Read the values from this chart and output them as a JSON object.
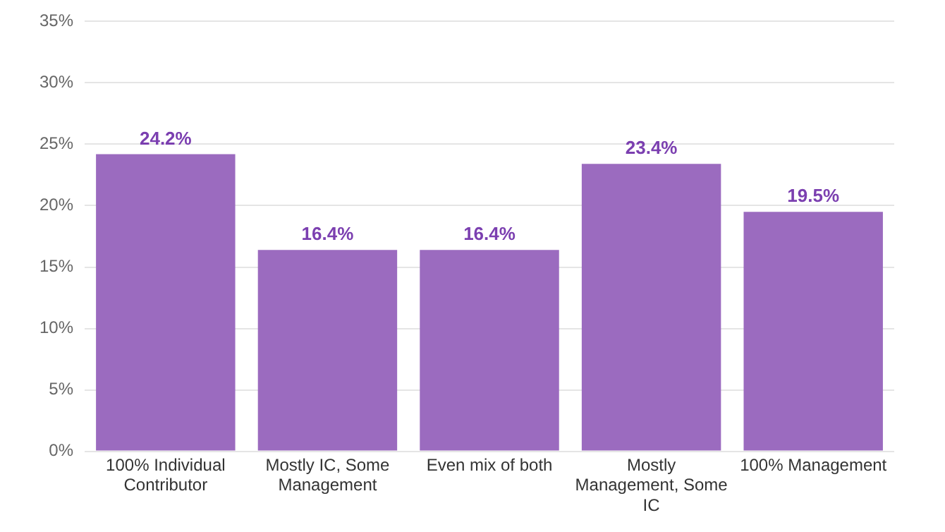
{
  "chart_data": {
    "type": "bar",
    "categories": [
      "100% Individual Contributor",
      "Mostly IC, Some Management",
      "Even mix of both",
      "Mostly Management, Some IC",
      "100% Management"
    ],
    "values": [
      24.2,
      16.4,
      16.4,
      23.4,
      19.5
    ],
    "value_labels": [
      "24.2%",
      "16.4%",
      "16.4%",
      "23.4%",
      "19.5%"
    ],
    "color": "#9b6bbf",
    "ylim": [
      0,
      35
    ],
    "yticks": [
      {
        "value": 0,
        "label": "0%"
      },
      {
        "value": 5,
        "label": "5%"
      },
      {
        "value": 10,
        "label": "10%"
      },
      {
        "value": 15,
        "label": "15%"
      },
      {
        "value": 20,
        "label": "20%"
      },
      {
        "value": 25,
        "label": "25%"
      },
      {
        "value": 30,
        "label": "30%"
      },
      {
        "value": 35,
        "label": "35%"
      }
    ],
    "grid": "y"
  }
}
